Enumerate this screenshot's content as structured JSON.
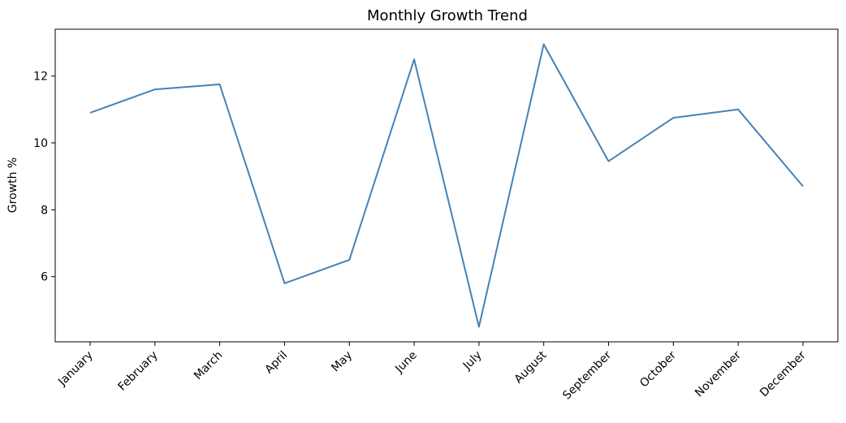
{
  "chart_data": {
    "type": "line",
    "title": "Monthly Growth Trend",
    "xlabel": "",
    "ylabel": "Growth %",
    "categories": [
      "January",
      "February",
      "March",
      "April",
      "May",
      "June",
      "July",
      "August",
      "September",
      "October",
      "November",
      "December"
    ],
    "series": [
      {
        "values": [
          10.9,
          11.6,
          11.75,
          5.8,
          6.5,
          12.5,
          4.5,
          12.95,
          9.45,
          10.75,
          11.0,
          8.7
        ],
        "color": "#4682b4"
      }
    ],
    "ylim": [
      4.05,
      13.4
    ],
    "yticks": [
      6,
      8,
      10,
      12
    ],
    "grid": false,
    "legend": "none"
  }
}
